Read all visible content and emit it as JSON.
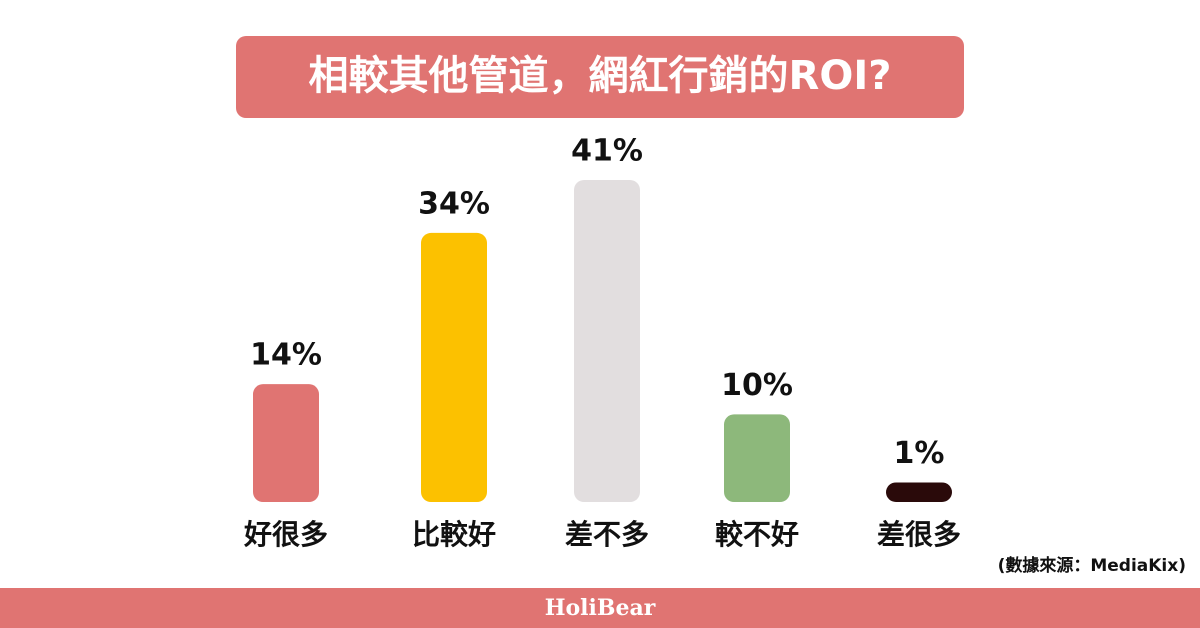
{
  "chart_data": {
    "type": "bar",
    "title": "相較其他管道，網紅行銷的ROI?",
    "categories": [
      "好很多",
      "比較好",
      "差不多",
      "較不好",
      "差很多"
    ],
    "values": [
      14,
      34,
      41,
      10,
      1
    ],
    "value_labels": [
      "14%",
      "34%",
      "41%",
      "10%",
      "1%"
    ],
    "colors": [
      "#e07472",
      "#fcc100",
      "#e2dedf",
      "#8db87b",
      "#2a0a0a"
    ],
    "source": "(數據來源：MediaKix)",
    "brand": "HoliBear"
  }
}
